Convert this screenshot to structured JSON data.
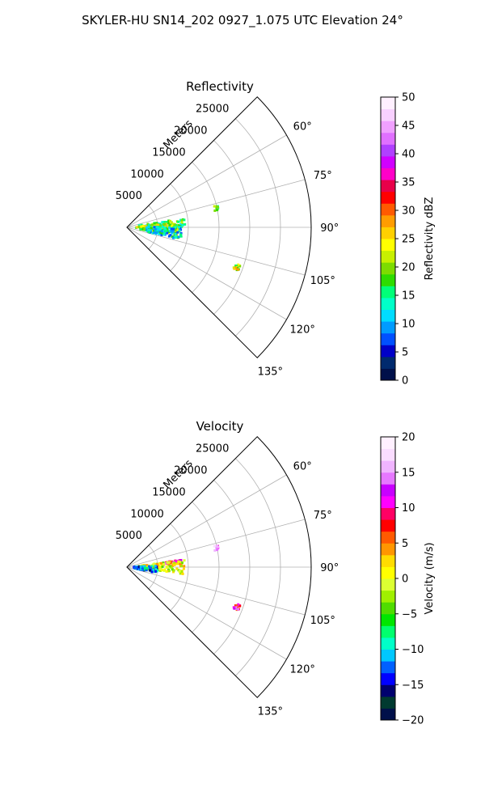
{
  "figure": {
    "title": "SKYLER-HU  SN14_202  0927_1.075 UTC Elevation 24°"
  },
  "chart_data": [
    {
      "type": "heatmap",
      "title": "Reflectivity",
      "radial_label": "Meters",
      "radial_ticks": [
        5000,
        10000,
        15000,
        20000,
        25000
      ],
      "radial_tick_labels": [
        "5000",
        "10000",
        "15000",
        "20000",
        "25000"
      ],
      "radial_max": 30000,
      "azimuth_range_deg": [
        45,
        135
      ],
      "azimuth_ticks": [
        60,
        75,
        90,
        105,
        120,
        135
      ],
      "azimuth_tick_labels": [
        "60°",
        "75°",
        "90°",
        "105°",
        "120°",
        "135°"
      ],
      "grid": true,
      "colorbar": {
        "label": "Reflectivity dBZ",
        "min": 0,
        "max": 50,
        "ticks": [
          0,
          5,
          10,
          15,
          20,
          25,
          30,
          35,
          40,
          45,
          50
        ],
        "tick_labels": [
          "0",
          "5",
          "10",
          "15",
          "20",
          "25",
          "30",
          "35",
          "40",
          "45",
          "50"
        ],
        "colors": [
          "#00104a",
          "#002a6e",
          "#0000c8",
          "#0050ff",
          "#009bff",
          "#00dcff",
          "#00ffc8",
          "#00ff78",
          "#2edc00",
          "#7ddc00",
          "#c8f000",
          "#ffff00",
          "#ffd000",
          "#ff9c00",
          "#ff5a00",
          "#ff0000",
          "#e8004a",
          "#ff00c8",
          "#d000ff",
          "#b040ff",
          "#e070ff",
          "#f0a0ff",
          "#f8d0ff",
          "#fff0ff"
        ]
      },
      "echoes": [
        {
          "az_deg": 78,
          "range_m": [
            14500,
            15200
          ],
          "value": 18
        },
        {
          "az_deg": 88,
          "range_m": [
            2000,
            9500
          ],
          "value": 16
        },
        {
          "az_deg": 92,
          "range_m": [
            1500,
            8500
          ],
          "value": 21
        },
        {
          "az_deg": 96,
          "range_m": [
            3000,
            9000
          ],
          "value": 12
        },
        {
          "az_deg": 110,
          "range_m": [
            18500,
            19500
          ],
          "value": 22
        }
      ]
    },
    {
      "type": "heatmap",
      "title": "Velocity",
      "radial_label": "Meters",
      "radial_ticks": [
        5000,
        10000,
        15000,
        20000,
        25000
      ],
      "radial_tick_labels": [
        "5000",
        "10000",
        "15000",
        "20000",
        "25000"
      ],
      "radial_max": 30000,
      "azimuth_range_deg": [
        45,
        135
      ],
      "azimuth_ticks": [
        60,
        75,
        90,
        105,
        120,
        135
      ],
      "azimuth_tick_labels": [
        "60°",
        "75°",
        "90°",
        "105°",
        "120°",
        "135°"
      ],
      "grid": true,
      "colorbar": {
        "label": "Velocity (m/s)",
        "min": -20,
        "max": 20,
        "ticks": [
          -20,
          -15,
          -10,
          -5,
          0,
          5,
          10,
          15,
          20
        ],
        "tick_labels": [
          "−20",
          "−15",
          "−10",
          "−5",
          "0",
          "5",
          "10",
          "15",
          "20"
        ],
        "colors": [
          "#00104a",
          "#003a30",
          "#00006e",
          "#0000ff",
          "#0060ff",
          "#00c8ff",
          "#00ffc8",
          "#00ff6e",
          "#00e600",
          "#50dc00",
          "#a0f000",
          "#dcff32",
          "#ffff00",
          "#ffdc00",
          "#ff9600",
          "#ff5a00",
          "#ff0000",
          "#ff0064",
          "#ff00ff",
          "#c800ff",
          "#e678ff",
          "#f0b4ff",
          "#fadcff",
          "#fff0ff"
        ]
      },
      "echoes": [
        {
          "az_deg": 78,
          "range_m": [
            14500,
            15200
          ],
          "value": 15
        },
        {
          "az_deg": 84,
          "range_m": [
            6000,
            9000
          ],
          "value": 10
        },
        {
          "az_deg": 90,
          "range_m": [
            1500,
            9500
          ],
          "value": 0
        },
        {
          "az_deg": 94,
          "range_m": [
            1000,
            5000
          ],
          "value": -12
        },
        {
          "az_deg": 110,
          "range_m": [
            18500,
            19500
          ],
          "value": 10
        }
      ]
    }
  ]
}
